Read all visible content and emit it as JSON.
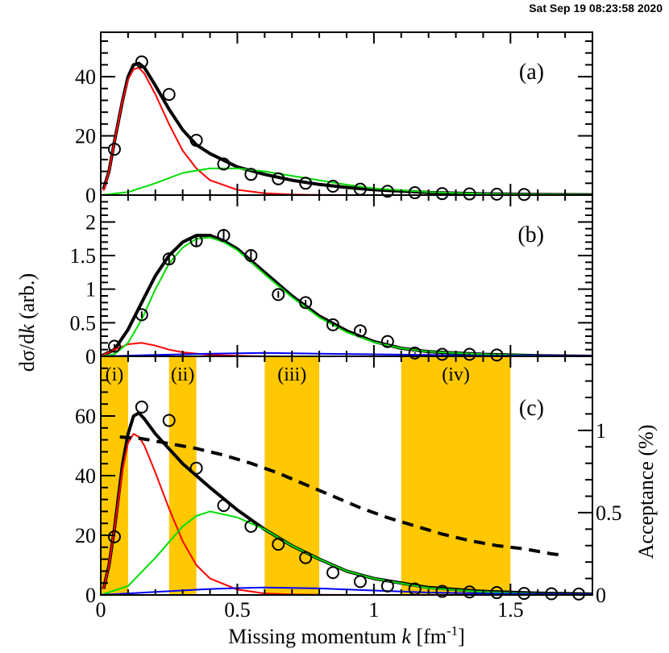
{
  "timestamp": "Sat Sep 19 08:23:58 2020",
  "chart_data": {
    "type": "scatter",
    "shared_x": {
      "label": "Missing momentum k [fm-1]",
      "label_parts": [
        "Missing momentum ",
        "k",
        " [fm",
        "-1",
        "]"
      ],
      "range": [
        0,
        1.8
      ],
      "ticks": [
        0,
        0.5,
        1,
        1.5
      ],
      "tick_labels": [
        "0",
        "0.5",
        "1",
        "1.5"
      ]
    },
    "shared_y_label": "dσ/dk (arb.)",
    "shared_y_label_parts": [
      "dσ/d",
      "k",
      " (arb.)"
    ],
    "panels": [
      {
        "label": "(a)",
        "y_range": [
          0,
          55
        ],
        "y_ticks": [
          0,
          20,
          40
        ],
        "y_tick_labels": [
          "0",
          "20",
          "40"
        ],
        "data": {
          "x": [
            0.05,
            0.15,
            0.25,
            0.35,
            0.45,
            0.55,
            0.65,
            0.75,
            0.85,
            0.95,
            1.05,
            1.15,
            1.25,
            1.35,
            1.45,
            1.55
          ],
          "y": [
            15.5,
            45,
            34,
            18.5,
            10.5,
            7,
            5.5,
            4,
            3,
            2,
            1.3,
            0.8,
            0.5,
            0.4,
            0.3,
            0.2
          ]
        },
        "curves": [
          {
            "color": "#000000",
            "x": [
              0.01,
              0.03,
              0.05,
              0.08,
              0.1,
              0.12,
              0.14,
              0.16,
              0.2,
              0.25,
              0.3,
              0.35,
              0.4,
              0.5,
              0.6,
              0.7,
              0.8,
              0.9,
              1.0,
              1.2,
              1.4,
              1.6,
              1.8
            ],
            "y": [
              2,
              8,
              18,
              32,
              40,
              44,
              44.5,
              43,
              37,
              29,
              22,
              17,
              14,
              9.5,
              7,
              5,
              3.6,
              2.6,
              1.8,
              0.9,
              0.4,
              0.2,
              0.1
            ]
          },
          {
            "color": "#ff0000",
            "x": [
              0.01,
              0.03,
              0.05,
              0.08,
              0.1,
              0.12,
              0.14,
              0.16,
              0.2,
              0.25,
              0.3,
              0.35,
              0.4,
              0.5,
              0.6,
              0.7,
              0.8,
              1.0,
              1.8
            ],
            "y": [
              1.5,
              8,
              18,
              32,
              39,
              42.5,
              43,
              41,
              34,
              24,
              15,
              9,
              5,
              1.8,
              0.6,
              0.2,
              0.05,
              0,
              0
            ]
          },
          {
            "color": "#00dd00",
            "x": [
              0,
              0.1,
              0.2,
              0.3,
              0.4,
              0.5,
              0.6,
              0.7,
              0.8,
              0.9,
              1.0,
              1.2,
              1.4,
              1.6,
              1.8
            ],
            "y": [
              0,
              1,
              4,
              7.5,
              9,
              9,
              8,
              6.5,
              5,
              3.5,
              2.3,
              1,
              0.4,
              0.2,
              0.1
            ]
          }
        ]
      },
      {
        "label": "(b)",
        "y_range": [
          0,
          2.4
        ],
        "y_ticks": [
          0,
          0.5,
          1,
          1.5,
          2
        ],
        "y_tick_labels": [
          "0",
          "0.5",
          "1",
          "1.5",
          "2"
        ],
        "data": {
          "x": [
            0.05,
            0.15,
            0.25,
            0.35,
            0.45,
            0.55,
            0.65,
            0.75,
            0.85,
            0.95,
            1.05,
            1.15,
            1.25,
            1.35,
            1.45
          ],
          "y": [
            0.15,
            0.62,
            1.45,
            1.72,
            1.8,
            1.5,
            0.92,
            0.8,
            0.47,
            0.38,
            0.22,
            0.05,
            0.03,
            0.03,
            0.02
          ],
          "err": [
            0.03,
            0.05,
            0.07,
            0.09,
            0.09,
            0.07,
            0.05,
            0.04,
            0.03,
            0.03,
            0.02,
            0.01,
            0.01,
            0.01,
            0.01
          ]
        },
        "curves": [
          {
            "color": "#000000",
            "x": [
              0,
              0.05,
              0.1,
              0.15,
              0.2,
              0.25,
              0.3,
              0.35,
              0.4,
              0.45,
              0.5,
              0.6,
              0.7,
              0.8,
              0.9,
              1.0,
              1.1,
              1.2,
              1.4,
              1.6,
              1.8
            ],
            "y": [
              0,
              0.1,
              0.4,
              0.8,
              1.2,
              1.5,
              1.7,
              1.8,
              1.8,
              1.72,
              1.6,
              1.25,
              0.9,
              0.6,
              0.38,
              0.22,
              0.12,
              0.07,
              0.03,
              0.01,
              0
            ]
          },
          {
            "color": "#ff0000",
            "x": [
              0,
              0.05,
              0.1,
              0.15,
              0.2,
              0.25,
              0.3,
              0.4,
              0.5,
              0.6,
              1.8
            ],
            "y": [
              0,
              0.1,
              0.18,
              0.2,
              0.16,
              0.1,
              0.06,
              0.02,
              0.01,
              0,
              0
            ]
          },
          {
            "color": "#00dd00",
            "x": [
              0,
              0.05,
              0.1,
              0.15,
              0.2,
              0.25,
              0.3,
              0.35,
              0.4,
              0.45,
              0.5,
              0.6,
              0.7,
              0.8,
              0.9,
              1.0,
              1.1,
              1.2,
              1.4,
              1.6,
              1.8
            ],
            "y": [
              0,
              0.03,
              0.2,
              0.55,
              1.0,
              1.38,
              1.62,
              1.75,
              1.77,
              1.7,
              1.58,
              1.22,
              0.88,
              0.58,
              0.36,
              0.21,
              0.12,
              0.07,
              0.03,
              0.01,
              0
            ]
          },
          {
            "color": "#0000ff",
            "x": [
              0,
              0.2,
              0.4,
              0.6,
              0.8,
              1.0,
              1.2,
              1.4,
              1.6,
              1.8
            ],
            "y": [
              0,
              0.02,
              0.04,
              0.05,
              0.04,
              0.03,
              0.02,
              0.01,
              0.01,
              0.005
            ]
          }
        ]
      },
      {
        "label": "(c)",
        "y_range": [
          0,
          80
        ],
        "y_ticks": [
          0,
          20,
          40,
          60
        ],
        "y_tick_labels": [
          "0",
          "20",
          "40",
          "60"
        ],
        "right_axis": {
          "label": "Acceptance (%)",
          "range": [
            0,
            1.45
          ],
          "ticks": [
            0,
            0.5,
            1
          ],
          "tick_labels": [
            "0",
            "0.5",
            "1"
          ]
        },
        "bands": [
          {
            "label": "(i)",
            "x": [
              0,
              0.1
            ]
          },
          {
            "label": "(ii)",
            "x": [
              0.25,
              0.35
            ]
          },
          {
            "label": "(iii)",
            "x": [
              0.6,
              0.8
            ]
          },
          {
            "label": "(iv)",
            "x": [
              1.1,
              1.5
            ]
          }
        ],
        "band_color": "#ffc800",
        "data": {
          "x": [
            0.05,
            0.15,
            0.25,
            0.35,
            0.45,
            0.55,
            0.65,
            0.75,
            0.85,
            0.95,
            1.05,
            1.15,
            1.25,
            1.35,
            1.45,
            1.55,
            1.65,
            1.75
          ],
          "y": [
            19.5,
            63,
            58.5,
            42.5,
            30,
            23,
            17,
            12.5,
            7.5,
            4.5,
            3,
            2,
            1.2,
            1,
            0.8,
            0.5,
            0.4,
            0.3
          ]
        },
        "curves": [
          {
            "color": "#000000",
            "x": [
              0.01,
              0.03,
              0.05,
              0.08,
              0.1,
              0.12,
              0.14,
              0.16,
              0.2,
              0.25,
              0.3,
              0.35,
              0.4,
              0.5,
              0.6,
              0.7,
              0.8,
              0.9,
              1.0,
              1.2,
              1.4,
              1.6,
              1.8
            ],
            "y": [
              2,
              10,
              22,
              44,
              54,
              60,
              61,
              59,
              54,
              49,
              44,
              40,
              36,
              28.5,
              22,
              16.5,
              12,
              8,
              5.5,
              2.5,
              1.2,
              0.6,
              0.3
            ]
          },
          {
            "color": "#ff0000",
            "x": [
              0.01,
              0.03,
              0.05,
              0.08,
              0.1,
              0.12,
              0.14,
              0.16,
              0.2,
              0.25,
              0.3,
              0.35,
              0.4,
              0.5,
              0.6,
              0.7,
              0.8,
              1.0,
              1.8
            ],
            "y": [
              2,
              10,
              22,
              42,
              51,
              54,
              53,
              50,
              41,
              29,
              18,
              10,
              5.5,
              1.8,
              0.5,
              0.15,
              0.05,
              0,
              0
            ]
          },
          {
            "color": "#00dd00",
            "x": [
              0,
              0.1,
              0.2,
              0.3,
              0.35,
              0.4,
              0.5,
              0.6,
              0.7,
              0.8,
              0.9,
              1.0,
              1.2,
              1.4,
              1.6,
              1.8
            ],
            "y": [
              0,
              3,
              12.5,
              23,
              26.5,
              28,
              26,
              22,
              16.5,
              12,
              8,
              5.5,
              2.3,
              1,
              0.4,
              0.2
            ]
          },
          {
            "color": "#0000ff",
            "x": [
              0,
              0.2,
              0.4,
              0.5,
              0.6,
              0.8,
              1.0,
              1.2,
              1.4,
              1.6,
              1.8
            ],
            "y": [
              0,
              1,
              2,
              2.3,
              2.5,
              2.2,
              1.5,
              0.8,
              0.5,
              0.3,
              0.2
            ]
          }
        ],
        "acceptance_curve": {
          "style": "dashed",
          "axis": "right",
          "x": [
            0.07,
            0.15,
            0.25,
            0.35,
            0.45,
            0.55,
            0.65,
            0.75,
            0.85,
            0.95,
            1.05,
            1.15,
            1.25,
            1.35,
            1.45,
            1.55,
            1.65,
            1.7
          ],
          "y": [
            0.96,
            0.95,
            0.92,
            0.89,
            0.85,
            0.8,
            0.74,
            0.67,
            0.6,
            0.53,
            0.47,
            0.42,
            0.37,
            0.33,
            0.3,
            0.28,
            0.25,
            0.24
          ]
        }
      }
    ]
  }
}
